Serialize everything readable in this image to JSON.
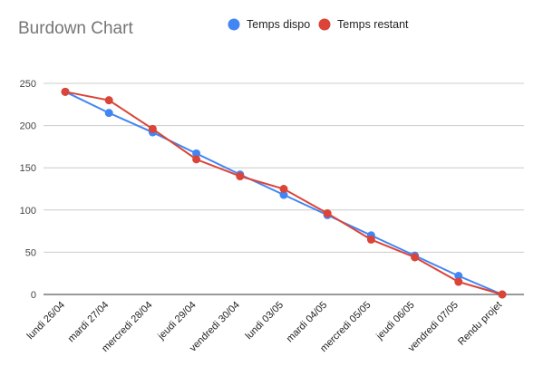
{
  "chart_data": {
    "type": "line",
    "title": "Burdown Chart",
    "xlabel": "",
    "ylabel": "",
    "categories": [
      "lundi 26/04",
      "mardi 27/04",
      "mercredi 28/04",
      "jeudi 29/04",
      "vendredi 30/04",
      "lundi 03/05",
      "mardi 04/05",
      "mercredi 05/05",
      "jeudi 06/05",
      "vendredi 07/05",
      "Rendu projet"
    ],
    "series": [
      {
        "name": "Temps dispo",
        "color": "#4285F4",
        "values": [
          240,
          215,
          192,
          167,
          142,
          118,
          94,
          70,
          46,
          22,
          0
        ]
      },
      {
        "name": "Temps restant",
        "color": "#DB4437",
        "values": [
          240,
          230,
          196,
          160,
          140,
          125,
          96,
          65,
          44,
          15,
          0
        ]
      }
    ],
    "ylim": [
      0,
      250
    ],
    "yticks": [
      0,
      50,
      100,
      150,
      200,
      250
    ],
    "grid": true,
    "legend_position": "top"
  }
}
